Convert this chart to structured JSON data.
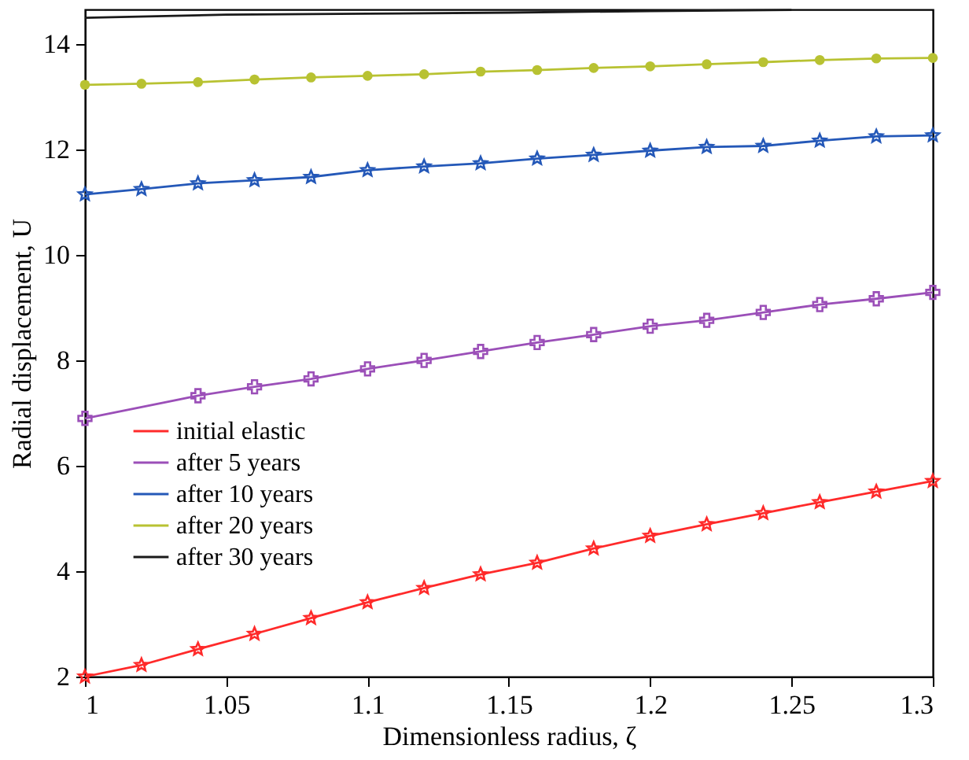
{
  "chart_data": {
    "type": "line",
    "xlabel": "Dimensionless radius,  ζ",
    "ylabel": "Radial displacement, U",
    "x": [
      1.0,
      1.02,
      1.04,
      1.06,
      1.08,
      1.1,
      1.12,
      1.14,
      1.16,
      1.18,
      1.2,
      1.22,
      1.24,
      1.26,
      1.28,
      1.3
    ],
    "series": [
      {
        "name": "initial elastic",
        "color": "#ff2a2a",
        "marker": "star",
        "values": [
          2.0,
          2.22,
          2.52,
          2.81,
          3.11,
          3.41,
          3.68,
          3.94,
          4.16,
          4.43,
          4.67,
          4.89,
          5.1,
          5.31,
          5.51,
          5.71
        ]
      },
      {
        "name": "after 5 years",
        "color": "#9b4fb8",
        "marker": "cross",
        "values": [
          6.9,
          null,
          7.33,
          7.5,
          7.65,
          7.84,
          8.0,
          8.17,
          8.34,
          8.49,
          8.65,
          8.76,
          8.91,
          9.06,
          9.17,
          9.29
        ]
      },
      {
        "name": "after 10 years",
        "color": "#2458b8",
        "marker": "star",
        "values": [
          11.15,
          11.25,
          11.36,
          11.42,
          11.48,
          11.61,
          11.68,
          11.74,
          11.83,
          11.9,
          11.98,
          12.05,
          12.07,
          12.17,
          12.25,
          12.27
        ]
      },
      {
        "name": "after 20 years",
        "color": "#b8c232",
        "marker": "circle",
        "values": [
          13.23,
          13.25,
          13.28,
          13.33,
          13.37,
          13.4,
          13.43,
          13.48,
          13.51,
          13.55,
          13.58,
          13.62,
          13.66,
          13.7,
          13.73,
          13.74
        ]
      },
      {
        "name": "after 30 years",
        "color": "#1a1a1a",
        "marker": "none",
        "x": [
          1.0,
          1.05,
          1.1,
          1.15,
          1.2,
          1.25
        ],
        "values": [
          14.5,
          14.56,
          14.58,
          14.6,
          14.63,
          14.65
        ]
      }
    ],
    "xlim": [
      1.0,
      1.3
    ],
    "xticks": [
      1,
      1.05,
      1.1,
      1.15,
      1.2,
      1.25,
      1.3
    ],
    "ylim": [
      2,
      14.66
    ],
    "yticks": [
      2,
      4,
      6,
      8,
      10,
      12,
      14
    ],
    "grid": false,
    "legend": "left"
  }
}
